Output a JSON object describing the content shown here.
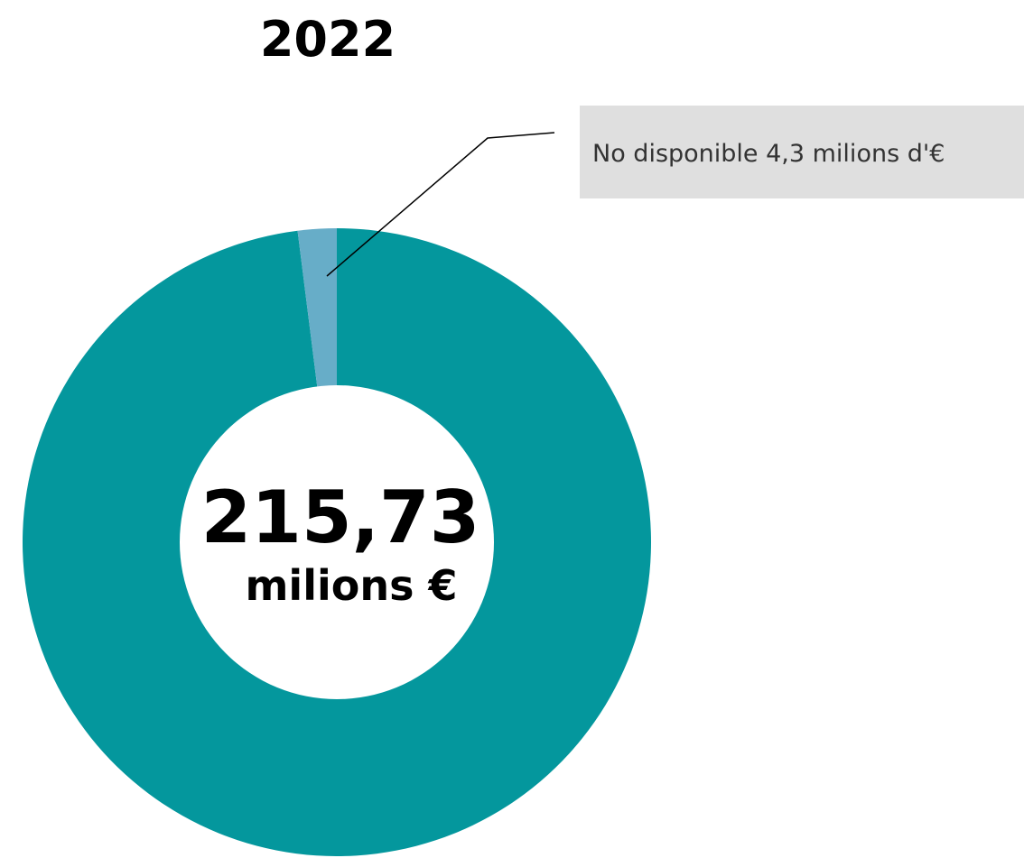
{
  "chart_data": {
    "type": "pie",
    "donut": true,
    "title": "2022",
    "slices": [
      {
        "label": "",
        "value": 211.43,
        "color": "#04979d"
      },
      {
        "label": "No disponible",
        "value": 4.3,
        "color": "#67adc8"
      }
    ],
    "center": {
      "value_text": "215,73",
      "unit_text": "milions €"
    },
    "annotation": {
      "text": "No disponible 4,3 milions d'€",
      "box_color": "#dfdfdf"
    }
  }
}
